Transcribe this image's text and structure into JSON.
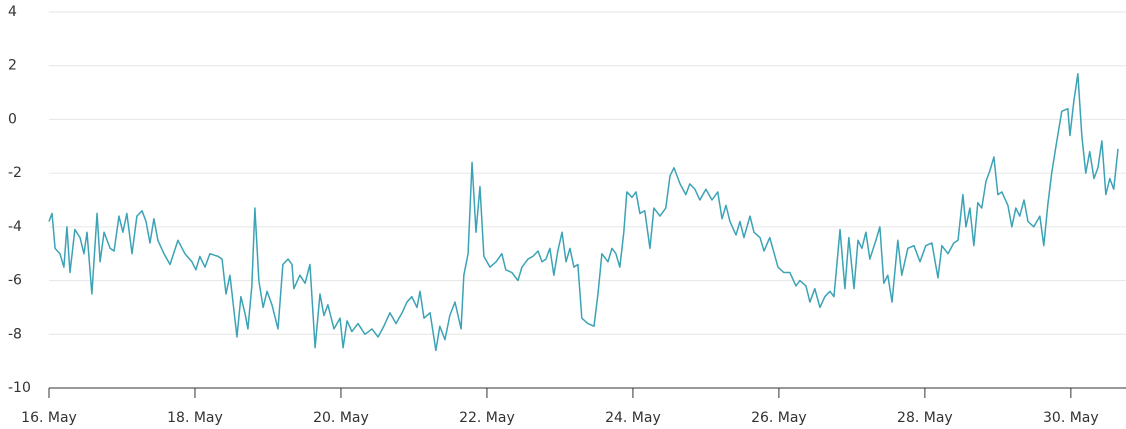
{
  "chart_data": {
    "type": "line",
    "x": [
      0,
      1.0,
      2.0,
      3.6,
      4.9,
      5.9,
      6.9,
      8.5,
      10.2,
      11.5,
      12.5,
      14.1,
      15.8,
      16.8,
      18.1,
      20.1,
      21.4,
      23.0,
      24.3,
      25.6,
      27.3,
      28.9,
      30.6,
      31.9,
      33.2,
      34.5,
      35.8,
      37.8,
      39.8,
      42.4,
      44.7,
      47.0,
      48.3,
      49.6,
      51.3,
      52.9,
      55.6,
      56.9,
      58.2,
      59.5,
      61.8,
      63.1,
      64.4,
      65.4,
      66.7,
      67.7,
      69.0,
      70.4,
      71.7,
      73.3,
      75.3,
      76.9,
      78.6,
      79.9,
      80.5,
      82.5,
      84.2,
      85.8,
      87.5,
      89.1,
      90.4,
      91.7,
      93.7,
      95.7,
      96.7,
      98.0,
      99.6,
      101.6,
      103.9,
      106.2,
      108.2,
      110.1,
      112.1,
      114.1,
      116.1,
      117.7,
      119.3,
      121.0,
      122.0,
      123.3,
      125.3,
      127.2,
      128.5,
      130.2,
      131.8,
      133.5,
      134.5,
      135.5,
      136.4,
      137.8,
      139.1,
      140.4,
      141.7,
      143.0,
      145.0,
      147.0,
      148.9,
      150.2,
      152.2,
      154.2,
      155.5,
      157.5,
      159.1,
      160.8,
      162.1,
      163.4,
      164.7,
      166.0,
      167.3,
      168.7,
      170.0,
      171.3,
      172.6,
      173.9,
      175.2,
      177.2,
      179.2,
      180.5,
      181.8,
      183.8,
      185.1,
      186.4,
      187.7,
      189.0,
      190.0,
      191.7,
      193.0,
      194.3,
      195.9,
      197.6,
      198.9,
      200.9,
      202.8,
      204.2,
      205.5,
      207.5,
      209.4,
      210.7,
      212.4,
      214.0,
      216.0,
      218.0,
      219.9,
      221.3,
      222.6,
      223.9,
      225.9,
      227.2,
      228.5,
      230.5,
      231.8,
      233.8,
      235.1,
      237.0,
      239.7,
      241.6,
      243.6,
      245.6,
      246.9,
      248.9,
      250.2,
      251.8,
      253.5,
      255.1,
      256.8,
      258.1,
      260.1,
      261.7,
      263.0,
      264.7,
      266.0,
      267.3,
      268.6,
      269.9,
      271.9,
      273.2,
      274.5,
      275.8,
      277.2,
      279.1,
      280.4,
      282.4,
      284.4,
      286.4,
      288.3,
      290.3,
      292.3,
      293.6,
      295.6,
      297.5,
      298.9,
      300.5,
      301.5,
      302.8,
      304.1,
      305.4,
      306.7,
      308.1,
      309.4,
      310.7,
      312.0,
      313.3,
      315.3,
      316.6,
      317.9,
      319.2,
      320.6,
      321.9,
      323.8,
      325.8,
      327.1,
      328.4,
      329.7,
      331.1,
      333.0,
      335.0,
      335.7,
      337.0,
      338.3,
      339.6,
      340.9,
      342.2,
      343.6,
      344.9,
      346.2,
      347.5,
      348.8,
      350.1,
      351.5
    ],
    "series": [
      {
        "color": "#3ba3b5",
        "values": [
          -3.8,
          -3.5,
          -4.8,
          -5.0,
          -5.5,
          -4.0,
          -5.7,
          -4.1,
          -4.4,
          -5.0,
          -4.2,
          -6.5,
          -3.5,
          -5.3,
          -4.2,
          -4.8,
          -4.9,
          -3.6,
          -4.2,
          -3.5,
          -5.0,
          -3.6,
          -3.4,
          -3.8,
          -4.6,
          -3.7,
          -4.5,
          -5.0,
          -5.4,
          -4.5,
          -5.0,
          -5.3,
          -5.6,
          -5.1,
          -5.5,
          -5.0,
          -5.1,
          -5.2,
          -6.5,
          -5.8,
          -8.1,
          -6.6,
          -7.2,
          -7.8,
          -6.2,
          -3.3,
          -6.0,
          -7.0,
          -6.4,
          -6.9,
          -7.8,
          -5.4,
          -5.2,
          -5.4,
          -6.3,
          -5.8,
          -6.1,
          -5.4,
          -8.5,
          -6.5,
          -7.3,
          -6.9,
          -7.8,
          -7.4,
          -8.5,
          -7.5,
          -7.9,
          -7.6,
          -8.0,
          -7.8,
          -8.1,
          -7.7,
          -7.2,
          -7.6,
          -7.2,
          -6.8,
          -6.6,
          -7.0,
          -6.4,
          -7.4,
          -7.2,
          -8.6,
          -7.7,
          -8.2,
          -7.3,
          -6.8,
          -7.3,
          -7.8,
          -5.8,
          -5.0,
          -1.6,
          -4.2,
          -2.5,
          -5.1,
          -5.5,
          -5.3,
          -5.0,
          -5.6,
          -5.7,
          -6.0,
          -5.5,
          -5.2,
          -5.1,
          -4.9,
          -5.3,
          -5.2,
          -4.8,
          -5.8,
          -4.9,
          -4.2,
          -5.3,
          -4.8,
          -5.5,
          -5.4,
          -7.4,
          -7.6,
          -7.7,
          -6.5,
          -5.0,
          -5.3,
          -4.8,
          -5.0,
          -5.5,
          -4.2,
          -2.7,
          -2.9,
          -2.7,
          -3.5,
          -3.4,
          -4.8,
          -3.3,
          -3.6,
          -3.3,
          -2.1,
          -1.8,
          -2.4,
          -2.8,
          -2.4,
          -2.6,
          -3.0,
          -2.6,
          -3.0,
          -2.7,
          -3.7,
          -3.2,
          -3.8,
          -4.3,
          -3.8,
          -4.4,
          -3.6,
          -4.2,
          -4.4,
          -4.9,
          -4.4,
          -5.5,
          -5.7,
          -5.7,
          -6.2,
          -6.0,
          -6.2,
          -6.8,
          -6.3,
          -7.0,
          -6.6,
          -6.4,
          -6.6,
          -4.1,
          -6.3,
          -4.4,
          -6.3,
          -4.5,
          -4.8,
          -4.2,
          -5.2,
          -4.5,
          -4.0,
          -6.1,
          -5.8,
          -6.8,
          -4.5,
          -5.8,
          -4.8,
          -4.7,
          -5.3,
          -4.7,
          -4.6,
          -5.9,
          -4.7,
          -5.0,
          -4.6,
          -4.5,
          -2.8,
          -4.0,
          -3.3,
          -4.7,
          -3.1,
          -3.3,
          -2.3,
          -1.9,
          -1.4,
          -2.8,
          -2.7,
          -3.2,
          -4.0,
          -3.3,
          -3.6,
          -3.0,
          -3.8,
          -4.0,
          -3.6,
          -4.7,
          -3.2,
          -2.0,
          -1.0,
          0.3,
          0.4,
          -0.6,
          0.7,
          1.7,
          -0.6,
          -2.0,
          -1.2,
          -2.2,
          -1.8,
          -0.8,
          -2.8,
          -2.2,
          -2.6,
          -1.1
        ]
      }
    ],
    "xlim": [
      0,
      351.5
    ],
    "xticks": [
      {
        "value": 0,
        "label": "16. May"
      },
      {
        "value": 48,
        "label": "18. May"
      },
      {
        "value": 96,
        "label": "20. May"
      },
      {
        "value": 144,
        "label": "22. May"
      },
      {
        "value": 192,
        "label": "24. May"
      },
      {
        "value": 240,
        "label": "26. May"
      },
      {
        "value": 288,
        "label": "28. May"
      },
      {
        "value": 336,
        "label": "30. May"
      }
    ],
    "ylim": [
      -10,
      4
    ],
    "yticks": [
      -10,
      -8,
      -6,
      -4,
      -2,
      0,
      2,
      4
    ],
    "grid": true
  }
}
